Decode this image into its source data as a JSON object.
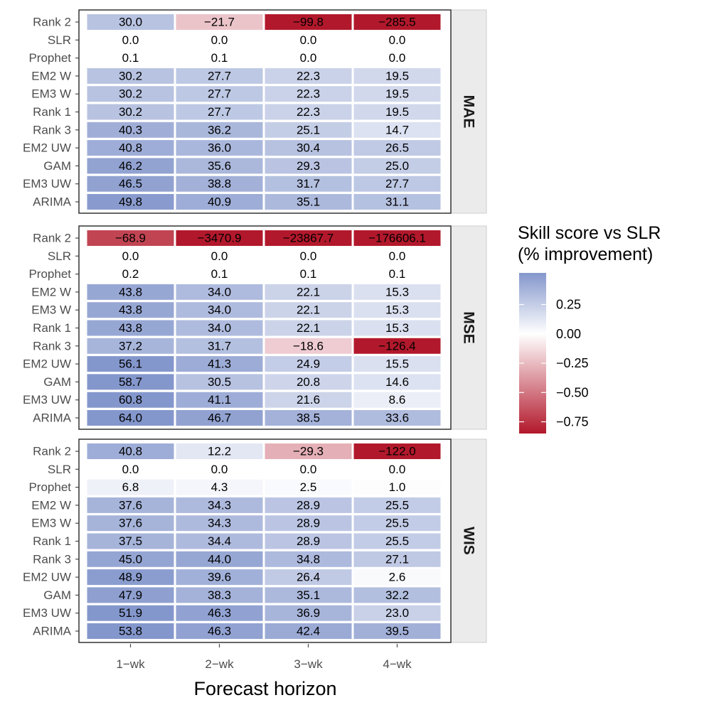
{
  "chart_data": {
    "type": "heatmap",
    "xlabel": "Forecast horizon",
    "x_categories": [
      "1−wk",
      "2−wk",
      "3−wk",
      "4−wk"
    ],
    "y_categories": [
      "Rank 2",
      "SLR",
      "Prophet",
      "EM2 W",
      "EM3 W",
      "Rank 1",
      "Rank 3",
      "EM2 UW",
      "GAM",
      "EM3 UW",
      "ARIMA"
    ],
    "legend": {
      "title_line1": "Skill score vs SLR",
      "title_line2": "(% improvement)",
      "breaks": [
        0.25,
        0.0,
        -0.25,
        -0.5,
        -0.75
      ],
      "break_labels": [
        "0.25",
        "0.00",
        "−0.25",
        "−0.50",
        "−0.75"
      ],
      "range": [
        -0.85,
        0.52
      ],
      "low_color": "#b2182b",
      "mid_color": "#ffffff",
      "high_color": "#8497cc",
      "border_color": "#333333",
      "strip_bg": "#ebebeb",
      "strip_border": "#cccccc",
      "tick_color": "#4d4d4d"
    },
    "panels": [
      {
        "strip": "MAE",
        "values": [
          [
            30.0,
            -21.7,
            -99.8,
            -285.5
          ],
          [
            0.0,
            0.0,
            0.0,
            0.0
          ],
          [
            0.1,
            0.1,
            0.0,
            0.0
          ],
          [
            30.2,
            27.7,
            22.3,
            19.5
          ],
          [
            30.2,
            27.7,
            22.3,
            19.5
          ],
          [
            30.2,
            27.7,
            22.3,
            19.5
          ],
          [
            40.3,
            36.2,
            25.1,
            14.7
          ],
          [
            40.8,
            36.0,
            30.4,
            26.5
          ],
          [
            46.2,
            35.6,
            29.3,
            25.0
          ],
          [
            46.5,
            38.8,
            31.7,
            27.7
          ],
          [
            49.8,
            40.9,
            35.1,
            31.1
          ]
        ],
        "labels": [
          [
            "30.0",
            "−21.7",
            "−99.8",
            "−285.5"
          ],
          [
            "0.0",
            "0.0",
            "0.0",
            "0.0"
          ],
          [
            "0.1",
            "0.1",
            "0.0",
            "0.0"
          ],
          [
            "30.2",
            "27.7",
            "22.3",
            "19.5"
          ],
          [
            "30.2",
            "27.7",
            "22.3",
            "19.5"
          ],
          [
            "30.2",
            "27.7",
            "22.3",
            "19.5"
          ],
          [
            "40.3",
            "36.2",
            "25.1",
            "14.7"
          ],
          [
            "40.8",
            "36.0",
            "30.4",
            "26.5"
          ],
          [
            "46.2",
            "35.6",
            "29.3",
            "25.0"
          ],
          [
            "46.5",
            "38.8",
            "31.7",
            "27.7"
          ],
          [
            "49.8",
            "40.9",
            "35.1",
            "31.1"
          ]
        ]
      },
      {
        "strip": "MSE",
        "values": [
          [
            -68.9,
            -3470.9,
            -23867.7,
            -176606.1
          ],
          [
            0.0,
            0.0,
            0.0,
            0.0
          ],
          [
            0.2,
            0.1,
            0.1,
            0.1
          ],
          [
            43.8,
            34.0,
            22.1,
            15.3
          ],
          [
            43.8,
            34.0,
            22.1,
            15.3
          ],
          [
            43.8,
            34.0,
            22.1,
            15.3
          ],
          [
            37.2,
            31.7,
            -18.6,
            -126.4
          ],
          [
            56.1,
            41.3,
            24.9,
            15.5
          ],
          [
            58.7,
            30.5,
            20.8,
            14.6
          ],
          [
            60.8,
            41.1,
            21.6,
            8.6
          ],
          [
            64.0,
            46.7,
            38.5,
            33.6
          ]
        ],
        "labels": [
          [
            "−68.9",
            "−3470.9",
            "−23867.7",
            "−176606.1"
          ],
          [
            "0.0",
            "0.0",
            "0.0",
            "0.0"
          ],
          [
            "0.2",
            "0.1",
            "0.1",
            "0.1"
          ],
          [
            "43.8",
            "34.0",
            "22.1",
            "15.3"
          ],
          [
            "43.8",
            "34.0",
            "22.1",
            "15.3"
          ],
          [
            "43.8",
            "34.0",
            "22.1",
            "15.3"
          ],
          [
            "37.2",
            "31.7",
            "−18.6",
            "−126.4"
          ],
          [
            "56.1",
            "41.3",
            "24.9",
            "15.5"
          ],
          [
            "58.7",
            "30.5",
            "20.8",
            "14.6"
          ],
          [
            "60.8",
            "41.1",
            "21.6",
            "8.6"
          ],
          [
            "64.0",
            "46.7",
            "38.5",
            "33.6"
          ]
        ]
      },
      {
        "strip": "WIS",
        "values": [
          [
            40.8,
            12.2,
            -29.3,
            -122.0
          ],
          [
            0.0,
            0.0,
            0.0,
            0.0
          ],
          [
            6.8,
            4.3,
            2.5,
            1.0
          ],
          [
            37.6,
            34.3,
            28.9,
            25.5
          ],
          [
            37.6,
            34.3,
            28.9,
            25.5
          ],
          [
            37.5,
            34.4,
            28.9,
            25.5
          ],
          [
            45.0,
            44.0,
            34.8,
            27.1
          ],
          [
            48.9,
            39.6,
            26.4,
            2.6
          ],
          [
            47.9,
            38.3,
            35.1,
            32.2
          ],
          [
            51.9,
            46.3,
            36.9,
            23.0
          ],
          [
            53.8,
            46.3,
            42.4,
            39.5
          ]
        ],
        "labels": [
          [
            "40.8",
            "12.2",
            "−29.3",
            "−122.0"
          ],
          [
            "0.0",
            "0.0",
            "0.0",
            "0.0"
          ],
          [
            "6.8",
            "4.3",
            "2.5",
            "1.0"
          ],
          [
            "37.6",
            "34.3",
            "28.9",
            "25.5"
          ],
          [
            "37.6",
            "34.3",
            "28.9",
            "25.5"
          ],
          [
            "37.5",
            "34.4",
            "28.9",
            "25.5"
          ],
          [
            "45.0",
            "44.0",
            "34.8",
            "27.1"
          ],
          [
            "48.9",
            "39.6",
            "26.4",
            "2.6"
          ],
          [
            "47.9",
            "38.3",
            "35.1",
            "32.2"
          ],
          [
            "51.9",
            "46.3",
            "36.9",
            "23.0"
          ],
          [
            "53.8",
            "46.3",
            "42.4",
            "39.5"
          ]
        ]
      }
    ]
  }
}
